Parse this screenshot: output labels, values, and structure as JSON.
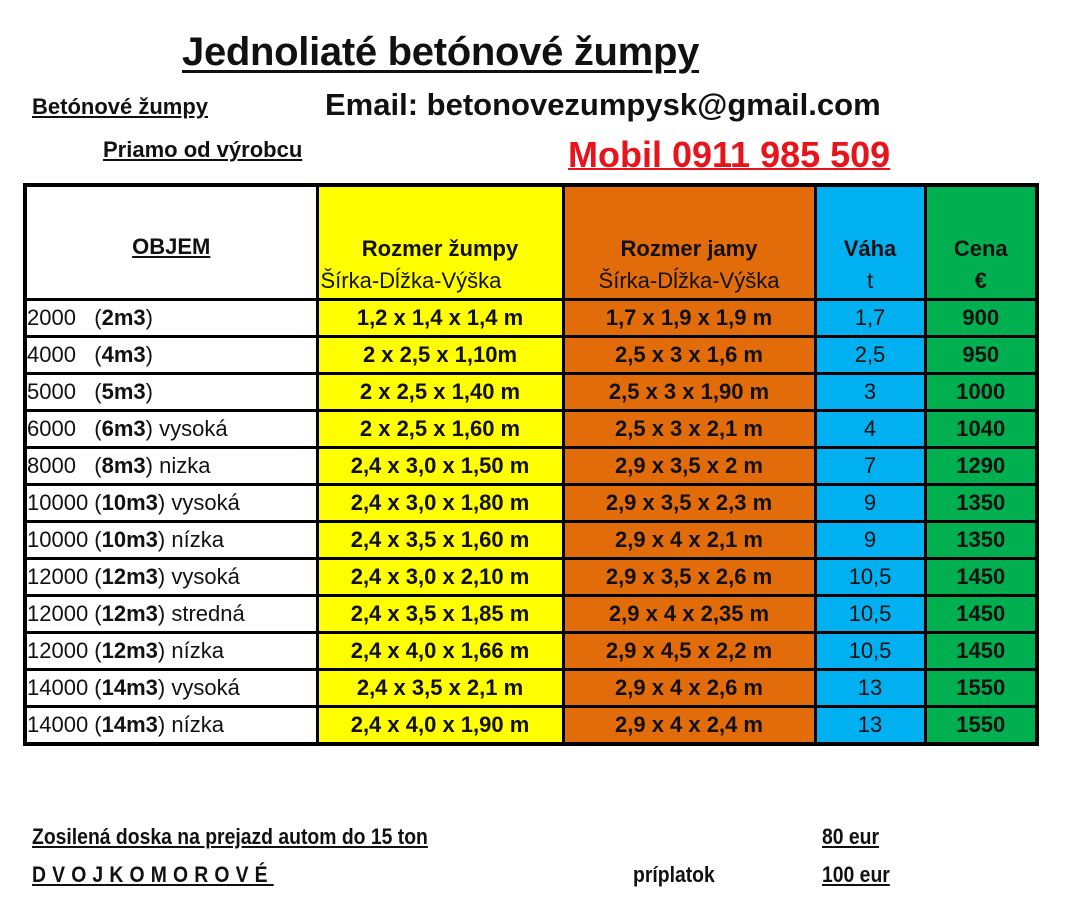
{
  "header": {
    "title": "Jednoliaté betónové žumpy",
    "subtitle_left": "Betónové žumpy",
    "email": "Email: betonovezumpysk@gmail.com",
    "subtitle_left2": "Priamo od výrobcu",
    "mobile": "Mobil 0911 985 509"
  },
  "colors": {
    "yellow": "#ffff00",
    "orange": "#e36c0a",
    "blue": "#00b0f0",
    "green": "#00b050",
    "mobile_red": "#e8141b"
  },
  "table": {
    "headers": [
      {
        "line1": "OBJEM",
        "line2": ""
      },
      {
        "line1": "Rozmer žumpy",
        "line2": "Šírka-Dĺžka-Výška"
      },
      {
        "line1": "Rozmer jamy",
        "line2": "Šírka-Dĺžka-Výška"
      },
      {
        "line1": "Váha",
        "line2": "t"
      },
      {
        "line1": "Cena",
        "line2": "€"
      }
    ],
    "rows": [
      {
        "liters": "2000",
        "gap": "   (",
        "m3": "2m3",
        "suffix": ")",
        "tank": "1,2 x 1,4 x 1,4 m",
        "pit": "1,7 x 1,9 x 1,9 m",
        "weight": "1,7",
        "price": "900"
      },
      {
        "liters": "4000",
        "gap": "   (",
        "m3": "4m3",
        "suffix": ")",
        "tank": "2 x 2,5 x 1,10m",
        "pit": "2,5 x 3 x 1,6 m",
        "weight": "2,5",
        "price": "950"
      },
      {
        "liters": "5000",
        "gap": "   (",
        "m3": "5m3",
        "suffix": ")",
        "tank": "2 x 2,5 x 1,40 m",
        "pit": "2,5 x 3 x 1,90 m",
        "weight": "3",
        "price": "1000"
      },
      {
        "liters": "6000",
        "gap": "   (",
        "m3": "6m3",
        "suffix": ") vysoká",
        "tank": "2 x 2,5 x 1,60 m",
        "pit": "2,5 x 3 x 2,1 m",
        "weight": "4",
        "price": "1040"
      },
      {
        "liters": "8000",
        "gap": "   (",
        "m3": "8m3",
        "suffix": ") nizka",
        "tank": "2,4 x 3,0 x 1,50 m",
        "pit": "2,9 x 3,5 x 2 m",
        "weight": "7",
        "price": "1290"
      },
      {
        "liters": "10000",
        "gap": " (",
        "m3": "10m3",
        "suffix": ") vysoká",
        "tank": "2,4 x 3,0 x 1,80 m",
        "pit": "2,9 x 3,5 x 2,3 m",
        "weight": "9",
        "price": "1350"
      },
      {
        "liters": "10000",
        "gap": " (",
        "m3": "10m3",
        "suffix": ") nízka",
        "tank": "2,4 x 3,5 x 1,60 m",
        "pit": "2,9 x 4 x 2,1 m",
        "weight": "9",
        "price": "1350"
      },
      {
        "liters": "12000",
        "gap": " (",
        "m3": "12m3",
        "suffix": ") vysoká",
        "tank": "2,4 x 3,0 x 2,10 m",
        "pit": "2,9 x 3,5 x 2,6 m",
        "weight": "10,5",
        "price": "1450"
      },
      {
        "liters": "12000",
        "gap": " (",
        "m3": "12m3",
        "suffix": ") stredná",
        "tank": "2,4 x 3,5 x 1,85 m",
        "pit": "2,9 x 4 x 2,35 m",
        "weight": "10,5",
        "price": "1450"
      },
      {
        "liters": "12000",
        "gap": " (",
        "m3": "12m3",
        "suffix": ") nízka",
        "tank": "2,4 x 4,0 x 1,66 m",
        "pit": "2,9 x 4,5 x 2,2 m",
        "weight": "10,5",
        "price": "1450"
      },
      {
        "liters": "14000",
        "gap": " (",
        "m3": "14m3",
        "suffix": ") vysoká",
        "tank": "2,4 x 3,5 x 2,1 m",
        "pit": "2,9 x 4 x 2,6 m",
        "weight": "13",
        "price": "1550"
      },
      {
        "liters": "14000",
        "gap": " (",
        "m3": "14m3",
        "suffix": ") nízka",
        "tank": "2,4 x 4,0 x 1,90 m",
        "pit": "2,9 x 4 x 2,4 m",
        "weight": "13",
        "price": "1550"
      }
    ]
  },
  "footer": {
    "reinforced_label": "Zosilená doska na prejazd autom do 15 ton",
    "reinforced_price": "80 eur",
    "double_label": "DVOJKOMOROVÉ",
    "surcharge_label": "príplatok",
    "double_price": "100 eur"
  }
}
